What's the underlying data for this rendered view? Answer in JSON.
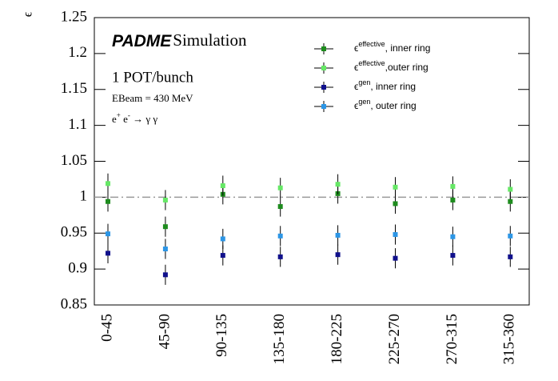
{
  "chart_data": {
    "type": "errorbar",
    "y_label": "ϵ",
    "annotations": {
      "logo": "PADME",
      "logo_suffix": "Simulation",
      "pot": "1 POT/bunch",
      "beam": "EBeam = 430 MeV",
      "process": [
        "e",
        "+",
        " e",
        "-",
        " → γ γ"
      ]
    },
    "categories": [
      "0-45",
      "45-90",
      "90-135",
      "135-180",
      "180-225",
      "225-270",
      "270-315",
      "315-360"
    ],
    "ylim": [
      0.85,
      1.25
    ],
    "yticks": [
      0.85,
      0.9,
      0.95,
      1,
      1.05,
      1.1,
      1.15,
      1.2,
      1.25
    ],
    "reference_line": 1,
    "series": [
      {
        "name": [
          "ϵ",
          "effective",
          ", inner ring"
        ],
        "color": "#1e8c1e",
        "values": [
          0.994,
          0.959,
          1.004,
          0.987,
          1.005,
          0.991,
          0.996,
          0.994
        ],
        "errors": [
          0.014,
          0.014,
          0.014,
          0.014,
          0.014,
          0.014,
          0.014,
          0.014
        ]
      },
      {
        "name": [
          "ϵ",
          "effective",
          ",outer ring"
        ],
        "color": "#66e866",
        "values": [
          1.019,
          0.996,
          1.016,
          1.013,
          1.018,
          1.014,
          1.015,
          1.011
        ],
        "errors": [
          0.014,
          0.014,
          0.014,
          0.014,
          0.014,
          0.014,
          0.014,
          0.014
        ]
      },
      {
        "name": [
          "ϵ",
          "gen",
          ", inner ring"
        ],
        "color": "#10108c",
        "values": [
          0.922,
          0.892,
          0.919,
          0.917,
          0.92,
          0.915,
          0.919,
          0.917
        ],
        "errors": [
          0.014,
          0.014,
          0.014,
          0.014,
          0.014,
          0.014,
          0.014,
          0.014
        ]
      },
      {
        "name": [
          "ϵ",
          "gen",
          ", outer ring"
        ],
        "color": "#2c96e6",
        "values": [
          0.949,
          0.928,
          0.942,
          0.946,
          0.947,
          0.948,
          0.945,
          0.946
        ],
        "errors": [
          0.014,
          0.014,
          0.014,
          0.014,
          0.014,
          0.014,
          0.014,
          0.014
        ]
      }
    ]
  }
}
